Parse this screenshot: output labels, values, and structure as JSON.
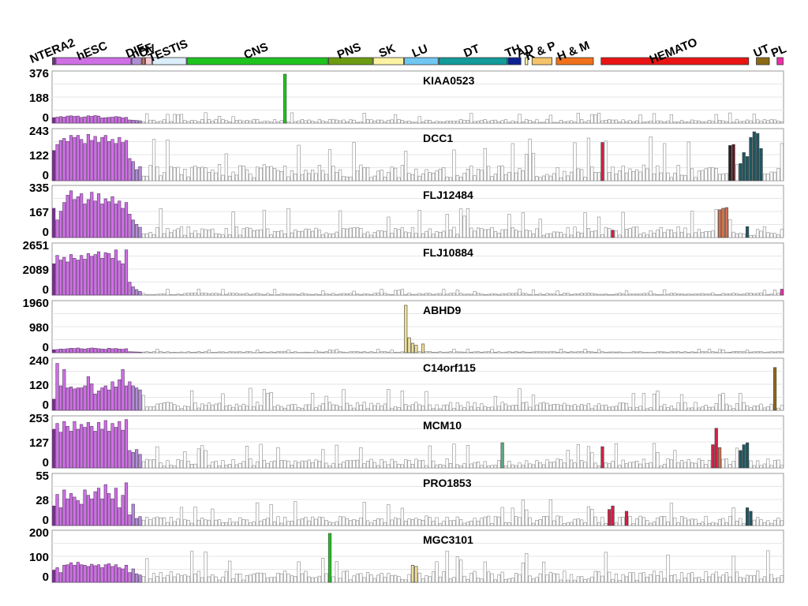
{
  "chart_data": {
    "type": "bar",
    "tissue_groups": [
      {
        "label": "NTERA2",
        "color": "#7a2f8f",
        "start": 0,
        "end": 1
      },
      {
        "label": "hESC",
        "color": "#cf6fe6",
        "start": 1,
        "end": 23
      },
      {
        "label": "DIF",
        "color": "#b08fd6",
        "start": 23,
        "end": 26
      },
      {
        "label": "hFF",
        "color": "#d2724e",
        "start": 26,
        "end": 27
      },
      {
        "label": "OV",
        "color": "#f6c7d4",
        "start": 27,
        "end": 29
      },
      {
        "label": "TESTIS",
        "color": "#dceefa",
        "start": 29,
        "end": 39
      },
      {
        "label": "CNS",
        "color": "#1fc31f",
        "start": 39,
        "end": 80
      },
      {
        "label": "PNS",
        "color": "#6b9b12",
        "start": 80,
        "end": 93
      },
      {
        "label": "SK",
        "color": "#fbf3a2",
        "start": 93,
        "end": 102
      },
      {
        "label": "LU",
        "color": "#6fc7f2",
        "start": 102,
        "end": 112
      },
      {
        "label": "DT",
        "color": "#139a9a",
        "start": 112,
        "end": 132
      },
      {
        "label": "TH",
        "color": "#0d2190",
        "start": 132,
        "end": 136
      },
      {
        "label": "AD",
        "color": "#fff3a0",
        "start": 137,
        "end": 138
      },
      {
        "label": "K & P",
        "color": "#f5c46a",
        "start": 139,
        "end": 145
      },
      {
        "label": "H & M",
        "color": "#f0711a",
        "start": 146,
        "end": 157
      },
      {
        "label": "HEMATO",
        "color": "#ea1414",
        "start": 159,
        "end": 202
      },
      {
        "label": "UT",
        "color": "#8c6a15",
        "start": 204,
        "end": 208
      },
      {
        "label": "PL",
        "color": "#f02da8",
        "start": 210,
        "end": 212
      }
    ],
    "n_samples": 212,
    "panels": [
      {
        "gene": "KIAA0523",
        "yticks": [
          "376",
          "188",
          "0"
        ],
        "ymax": 376,
        "head": [
          42,
          46,
          50,
          46,
          54,
          56,
          52,
          54,
          44,
          48,
          56,
          52,
          58,
          54,
          40,
          42,
          44,
          46,
          50,
          48,
          40,
          44,
          24,
          22,
          20,
          18
        ],
        "base": 22,
        "highlights": [
          {
            "index": 67,
            "value": 376,
            "color": "#1fc31f"
          }
        ]
      },
      {
        "gene": "DCC1",
        "yticks": [
          "243",
          "122",
          "0"
        ],
        "ymax": 243,
        "head": [
          150,
          180,
          200,
          210,
          195,
          225,
          215,
          225,
          205,
          185,
          230,
          200,
          220,
          190,
          215,
          225,
          195,
          205,
          185,
          215,
          190,
          200,
          110,
          95,
          55,
          70
        ],
        "base": 60,
        "highlights": [
          {
            "index": 159,
            "value": 190,
            "color": "#d81c45"
          },
          {
            "index": 196,
            "value": 175,
            "color": "#222222"
          },
          {
            "index": 197,
            "value": 180,
            "color": "#5a1a20"
          },
          {
            "index": 199,
            "value": 85,
            "color": "#1f5660"
          },
          {
            "index": 200,
            "value": 140,
            "color": "#1f5660"
          },
          {
            "index": 201,
            "value": 120,
            "color": "#1f5660"
          },
          {
            "index": 202,
            "value": 215,
            "color": "#1f5660"
          },
          {
            "index": 203,
            "value": 245,
            "color": "#1f5660"
          },
          {
            "index": 204,
            "value": 235,
            "color": "#1f5660"
          },
          {
            "index": 205,
            "value": 160,
            "color": "#1f5660"
          }
        ]
      },
      {
        "gene": "FLJ12484",
        "yticks": [
          "335",
          "167",
          "0"
        ],
        "ymax": 335,
        "head": [
          200,
          120,
          180,
          240,
          290,
          320,
          260,
          280,
          300,
          230,
          260,
          310,
          250,
          300,
          230,
          265,
          245,
          280,
          230,
          250,
          200,
          240,
          160,
          120,
          90,
          70
        ],
        "base": 55,
        "highlights": [
          {
            "index": 162,
            "value": 50,
            "color": "#d81c45"
          },
          {
            "index": 193,
            "value": 190,
            "color": "#d2724e"
          },
          {
            "index": 194,
            "value": 200,
            "color": "#d2724e"
          },
          {
            "index": 195,
            "value": 205,
            "color": "#d2724e"
          },
          {
            "index": 201,
            "value": 75,
            "color": "#1f5660"
          }
        ]
      },
      {
        "gene": "FLJ10884",
        "yticks": [
          "2651",
          "2089",
          "0"
        ],
        "ymax": 2651,
        "head": [
          1700,
          2150,
          1900,
          2050,
          1800,
          2200,
          2000,
          1900,
          2150,
          1950,
          2250,
          2100,
          2200,
          2350,
          2000,
          2300,
          2250,
          2000,
          2450,
          1850,
          1700,
          2450,
          700,
          450,
          300,
          200
        ],
        "base": 90,
        "highlights": [
          {
            "index": 211,
            "value": 320,
            "color": "#f02da8"
          }
        ]
      },
      {
        "gene": "ABHD9",
        "yticks": [
          "1960",
          "980",
          "0"
        ],
        "ymax": 1960,
        "head": [
          120,
          130,
          150,
          140,
          160,
          180,
          170,
          190,
          160,
          150,
          170,
          190,
          180,
          160,
          150,
          140,
          180,
          160,
          170,
          150,
          140,
          160,
          40,
          35,
          30,
          25
        ],
        "base": 40,
        "highlights": [
          {
            "index": 102,
            "value": 1900,
            "color": "#efe09a"
          },
          {
            "index": 103,
            "value": 600,
            "color": "#efe09a"
          },
          {
            "index": 104,
            "value": 380,
            "color": "#efe09a"
          },
          {
            "index": 105,
            "value": 300,
            "color": "#efe09a"
          },
          {
            "index": 107,
            "value": 350,
            "color": "#efe09a"
          }
        ]
      },
      {
        "gene": "C14orf115",
        "yticks": [
          "240",
          "120",
          "0"
        ],
        "ymax": 240,
        "head": [
          55,
          230,
          120,
          200,
          110,
          115,
          105,
          110,
          110,
          120,
          165,
          130,
          80,
          95,
          110,
          120,
          100,
          140,
          115,
          150,
          200,
          120,
          140,
          120,
          110,
          100
        ],
        "base": 30,
        "highlights": [
          {
            "index": 209,
            "value": 210,
            "color": "#8c6a15"
          }
        ]
      },
      {
        "gene": "MCM10",
        "yticks": [
          "253",
          "127",
          "0"
        ],
        "ymax": 253,
        "head": [
          200,
          230,
          185,
          240,
          215,
          190,
          240,
          200,
          225,
          210,
          235,
          215,
          190,
          235,
          200,
          245,
          190,
          230,
          210,
          240,
          195,
          250,
          90,
          80,
          95,
          70
        ],
        "base": 35,
        "highlights": [
          {
            "index": 130,
            "value": 130,
            "color": "#5aab80"
          },
          {
            "index": 159,
            "value": 110,
            "color": "#d81c45"
          },
          {
            "index": 191,
            "value": 120,
            "color": "#d81c45"
          },
          {
            "index": 192,
            "value": 205,
            "color": "#d81c45"
          },
          {
            "index": 193,
            "value": 105,
            "color": "#d2724e"
          },
          {
            "index": 199,
            "value": 90,
            "color": "#1f5660"
          },
          {
            "index": 200,
            "value": 120,
            "color": "#1f5660"
          },
          {
            "index": 201,
            "value": 130,
            "color": "#1f5660"
          }
        ]
      },
      {
        "gene": "PRO1853",
        "yticks": [
          "55",
          "28",
          "0"
        ],
        "ymax": 55,
        "head": [
          22,
          35,
          20,
          40,
          30,
          36,
          32,
          28,
          24,
          40,
          34,
          30,
          38,
          42,
          30,
          46,
          36,
          30,
          42,
          20,
          34,
          48,
          12,
          24,
          8,
          10
        ],
        "base": 8,
        "highlights": [
          {
            "index": 161,
            "value": 18,
            "color": "#d81c45"
          },
          {
            "index": 162,
            "value": 22,
            "color": "#d81c45"
          },
          {
            "index": 166,
            "value": 16,
            "color": "#d81c45"
          },
          {
            "index": 201,
            "value": 20,
            "color": "#1f5660"
          },
          {
            "index": 202,
            "value": 16,
            "color": "#1f5660"
          }
        ]
      },
      {
        "gene": "MGC3101",
        "yticks": [
          "200",
          "100",
          "0"
        ],
        "ymax": 200,
        "head": [
          50,
          60,
          40,
          70,
          72,
          80,
          70,
          82,
          72,
          70,
          65,
          74,
          68,
          72,
          60,
          72,
          76,
          65,
          72,
          60,
          55,
          70,
          40,
          55,
          35,
          30
        ],
        "base": 35,
        "highlights": [
          {
            "index": 80,
            "value": 200,
            "color": "#1fc31f"
          },
          {
            "index": 104,
            "value": 70,
            "color": "#efe09a"
          },
          {
            "index": 105,
            "value": 65,
            "color": "#efe09a"
          }
        ]
      }
    ]
  }
}
